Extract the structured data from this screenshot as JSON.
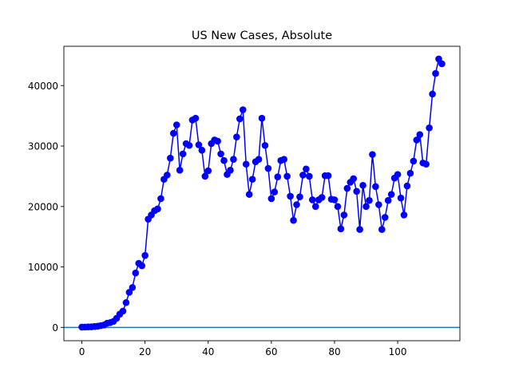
{
  "chart_data": {
    "type": "line",
    "title": "US New Cases, Absolute",
    "xlabel": "",
    "ylabel": "",
    "xlim": [
      -5.7,
      119.7
    ],
    "ylim": [
      -2200,
      46500
    ],
    "xticks": [
      0,
      20,
      40,
      60,
      80,
      100
    ],
    "xtick_labels": [
      "0",
      "20",
      "40",
      "60",
      "80",
      "100"
    ],
    "yticks": [
      0,
      10000,
      20000,
      30000,
      40000
    ],
    "ytick_labels": [
      "0",
      "10000",
      "20000",
      "30000",
      "40000"
    ],
    "grid": false,
    "legend": "none",
    "series": [
      {
        "color": "#0000ff",
        "marker": "circle",
        "x": [
          0,
          1,
          2,
          3,
          4,
          5,
          6,
          7,
          8,
          9,
          10,
          11,
          12,
          13,
          14,
          15,
          16,
          17,
          18,
          19,
          20,
          21,
          22,
          23,
          24,
          25,
          26,
          27,
          28,
          29,
          30,
          31,
          32,
          33,
          34,
          35,
          36,
          37,
          38,
          39,
          40,
          41,
          42,
          43,
          44,
          45,
          46,
          47,
          48,
          49,
          50,
          51,
          52,
          53,
          54,
          55,
          56,
          57,
          58,
          59,
          60,
          61,
          62,
          63,
          64,
          65,
          66,
          67,
          68,
          69,
          70,
          71,
          72,
          73,
          74,
          75,
          76,
          77,
          78,
          79,
          80,
          81,
          82,
          83,
          84,
          85,
          86,
          87,
          88,
          89,
          90,
          91,
          92,
          93,
          94,
          95,
          96,
          97,
          98,
          99,
          100,
          101,
          102,
          103,
          104,
          105,
          106,
          107,
          108,
          109,
          110,
          111,
          112,
          113,
          114
        ],
        "values": [
          50,
          60,
          80,
          100,
          150,
          200,
          300,
          400,
          700,
          800,
          1000,
          1500,
          2200,
          2700,
          4100,
          5800,
          6600,
          9000,
          10600,
          10200,
          11900,
          17900,
          18600,
          19300,
          19600,
          21300,
          24500,
          25200,
          28000,
          32100,
          33500,
          26000,
          28700,
          30400,
          30100,
          34300,
          34600,
          30200,
          29300,
          25000,
          25900,
          30400,
          31000,
          30800,
          28700,
          27600,
          25300,
          26000,
          27800,
          31500,
          34500,
          36000,
          27000,
          22000,
          24500,
          27400,
          27800,
          34600,
          30100,
          26300,
          21300,
          22400,
          24900,
          27600,
          27800,
          25000,
          21700,
          17700,
          20300,
          21600,
          25200,
          26200,
          25000,
          21100,
          20000,
          21100,
          21500,
          25100,
          25100,
          21200,
          21100,
          20000,
          16300,
          18600,
          23000,
          24000,
          24600,
          22500,
          16200,
          23500,
          20000,
          21000,
          28600,
          23300,
          20300,
          16200,
          18200,
          21000,
          22000,
          24700,
          25300,
          21400,
          18600,
          23400,
          25500,
          27500,
          31000,
          31900,
          27200,
          27000,
          33000,
          38600,
          42000,
          44400,
          43600
        ]
      }
    ],
    "reference_lines": [
      {
        "orientation": "horizontal",
        "y": 0,
        "color": "#1f77b4"
      }
    ]
  }
}
